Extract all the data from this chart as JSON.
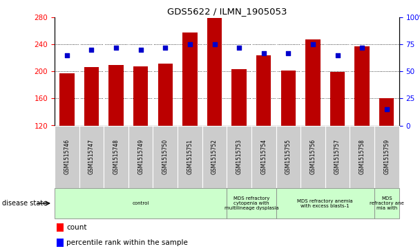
{
  "title": "GDS5622 / ILMN_1905053",
  "samples": [
    "GSM1515746",
    "GSM1515747",
    "GSM1515748",
    "GSM1515749",
    "GSM1515750",
    "GSM1515751",
    "GSM1515752",
    "GSM1515753",
    "GSM1515754",
    "GSM1515755",
    "GSM1515756",
    "GSM1515757",
    "GSM1515758",
    "GSM1515759"
  ],
  "counts": [
    197,
    207,
    210,
    208,
    212,
    258,
    279,
    204,
    224,
    202,
    248,
    199,
    237,
    160
  ],
  "percentiles": [
    65,
    70,
    72,
    70,
    72,
    75,
    75,
    72,
    67,
    67,
    75,
    65,
    72,
    15
  ],
  "ylim_left": [
    120,
    280
  ],
  "ylim_right": [
    0,
    100
  ],
  "yticks_left": [
    120,
    160,
    200,
    240,
    280
  ],
  "yticks_right": [
    0,
    25,
    50,
    75,
    100
  ],
  "bar_color": "#bb0000",
  "dot_color": "#0000cc",
  "background_plot": "#ffffff",
  "cell_bg": "#cccccc",
  "disease_groups": [
    {
      "label": "control",
      "start": 0,
      "end": 7
    },
    {
      "label": "MDS refractory\ncytopenia with\nmultilineage dysplasia",
      "start": 7,
      "end": 9
    },
    {
      "label": "MDS refractory anemia\nwith excess blasts-1",
      "start": 9,
      "end": 13
    },
    {
      "label": "MDS\nrefractory ane\nmia with",
      "start": 13,
      "end": 14
    }
  ],
  "disease_group_color": "#ccffcc",
  "xlabel_disease": "disease state",
  "legend_count": "count",
  "legend_percentile": "percentile rank within the sample",
  "n": 14
}
